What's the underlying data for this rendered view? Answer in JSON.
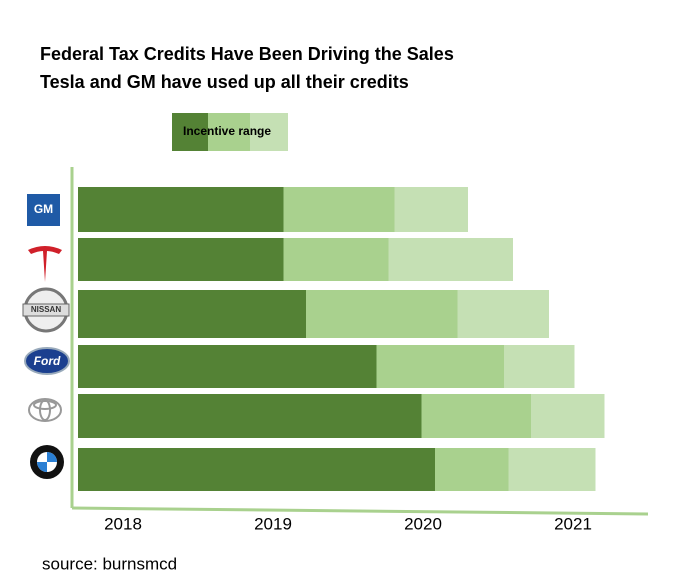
{
  "chart_data": {
    "type": "bar",
    "title": "Federal Tax Credits Have Been Driving the Sales",
    "subtitle": "Tesla and GM have used up all their credits",
    "legend_label": "Incentive range",
    "source": "source:  burnsmcd",
    "categories": [
      "GM",
      null,
      "NISSAN",
      "Ford",
      null,
      null
    ],
    "series": [
      {
        "color": "#548235",
        "values": [
          1.37,
          1.37,
          1.52,
          1.99,
          2.29,
          2.38
        ]
      },
      {
        "color": "#a9d18e",
        "values": [
          0.74,
          0.7,
          1.01,
          0.85,
          0.73,
          0.49
        ]
      },
      {
        "color": "#c5e0b4",
        "values": [
          0.49,
          0.83,
          0.61,
          0.47,
          0.49,
          0.58
        ]
      }
    ],
    "xlim": [
      2017.7,
      2021.5
    ],
    "xticks": [
      2018,
      2019,
      2020,
      2021
    ]
  }
}
